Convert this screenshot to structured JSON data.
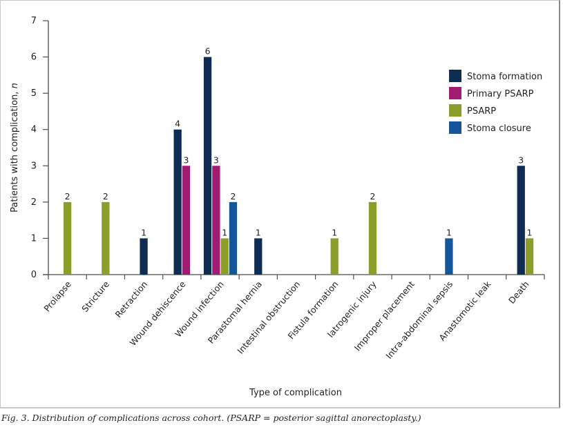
{
  "caption": "Fig. 3. Distribution of complications across cohort. (PSARP = posterior sagittal anorectoplasty.)",
  "chart_data": {
    "type": "bar",
    "title": "",
    "xlabel": "Type of complication",
    "ylabel": "Patients with complication, n",
    "ylabel_main": "Patients with complication, ",
    "ylabel_italic": "n",
    "ylim": [
      0,
      7
    ],
    "yticks": [
      0,
      1,
      2,
      3,
      4,
      5,
      6,
      7
    ],
    "grid": false,
    "legend_position": "top-right",
    "categories": [
      "Prolapse",
      "Stricture",
      "Retraction",
      "Wound dehiscence",
      "Wound infection",
      "Parastomal hernia",
      "Intestinal obstruction",
      "Fistula formation",
      "Iatrogenic injury",
      "Improper placement",
      "Intra-abdominal sepsis",
      "Anastomotic leak",
      "Death"
    ],
    "series": [
      {
        "name": "Stoma formation",
        "color": "#0f2d52",
        "values": [
          0,
          0,
          1,
          4,
          6,
          1,
          0,
          0,
          0,
          0,
          0,
          0,
          3
        ]
      },
      {
        "name": "Primary PSARP",
        "color": "#a21b72",
        "values": [
          0,
          0,
          0,
          3,
          3,
          0,
          0,
          0,
          0,
          0,
          0,
          0,
          0
        ]
      },
      {
        "name": "PSARP",
        "color": "#8c9e2a",
        "values": [
          2,
          2,
          0,
          0,
          1,
          0,
          0,
          1,
          2,
          0,
          0,
          0,
          1
        ]
      },
      {
        "name": "Stoma closure",
        "color": "#17559a",
        "values": [
          0,
          0,
          0,
          0,
          2,
          0,
          0,
          0,
          0,
          0,
          1,
          0,
          0
        ]
      }
    ]
  }
}
